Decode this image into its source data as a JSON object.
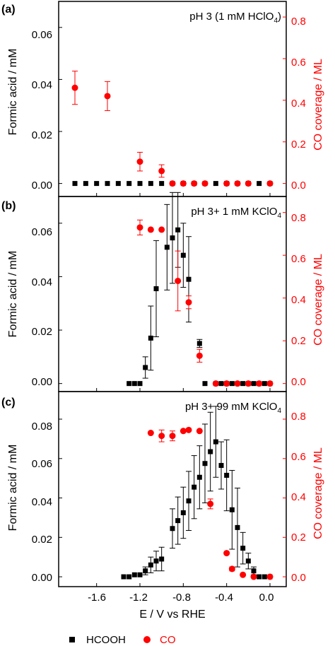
{
  "chart_data": [
    {
      "type": "scatter",
      "panel_label": "(a)",
      "annotation": {
        "prefix": "pH 3 (1 mM HClO",
        "sub": "4",
        "suffix": ")"
      },
      "ylabel_left": "Formic acid / mM",
      "ylabel_right": "CO coverage / ML",
      "ylim_left": [
        -0.005,
        0.07
      ],
      "ylim_right": [
        -0.0625,
        0.875
      ],
      "yticks_left": [
        "0.00",
        "0.02",
        "0.04",
        "0.06"
      ],
      "yticks_right": [
        "0.0",
        "0.2",
        "0.4",
        "0.6",
        "0.8"
      ],
      "xlim": [
        -1.95,
        0.15
      ],
      "series": [
        {
          "name": "HCOOH",
          "axis": "left",
          "points": [
            {
              "x": -1.8,
              "y": 0.0
            },
            {
              "x": -1.7,
              "y": 0.0
            },
            {
              "x": -1.6,
              "y": 0.0
            },
            {
              "x": -1.5,
              "y": 0.0
            },
            {
              "x": -1.4,
              "y": 0.0
            },
            {
              "x": -1.3,
              "y": 0.0
            },
            {
              "x": -1.2,
              "y": 0.0
            },
            {
              "x": -1.1,
              "y": 0.0
            },
            {
              "x": -1.0,
              "y": 0.0
            },
            {
              "x": -0.9,
              "y": 0.0
            },
            {
              "x": -0.8,
              "y": 0.0
            },
            {
              "x": -0.7,
              "y": 0.0
            },
            {
              "x": -0.6,
              "y": 0.0
            },
            {
              "x": -0.5,
              "y": 0.0
            },
            {
              "x": -0.4,
              "y": 0.0
            },
            {
              "x": -0.3,
              "y": 0.0
            },
            {
              "x": -0.2,
              "y": 0.0
            },
            {
              "x": -0.1,
              "y": 0.0
            },
            {
              "x": 0.0,
              "y": 0.0
            }
          ]
        },
        {
          "name": "CO",
          "axis": "right",
          "points": [
            {
              "x": -1.8,
              "y": 0.46,
              "err": 0.08
            },
            {
              "x": -1.5,
              "y": 0.42,
              "err": 0.07
            },
            {
              "x": -1.2,
              "y": 0.105,
              "err": 0.045
            },
            {
              "x": -1.0,
              "y": 0.06,
              "err": 0.03
            },
            {
              "x": -0.9,
              "y": 0.0
            },
            {
              "x": -0.8,
              "y": 0.0
            },
            {
              "x": -0.7,
              "y": 0.0
            },
            {
              "x": -0.6,
              "y": 0.0
            },
            {
              "x": -0.4,
              "y": 0.0
            },
            {
              "x": -0.3,
              "y": 0.0
            },
            {
              "x": -0.2,
              "y": 0.0
            },
            {
              "x": 0.0,
              "y": 0.0
            }
          ]
        }
      ]
    },
    {
      "type": "scatter",
      "panel_label": "(b)",
      "annotation": {
        "prefix": "pH 3+ 1 mM KClO",
        "sub": "4",
        "suffix": ""
      },
      "ylabel_left": "Formic acid / mM",
      "ylabel_right": "CO coverage / ML",
      "ylim_left": [
        -0.003,
        0.07
      ],
      "ylim_right": [
        -0.0375,
        0.875
      ],
      "yticks_left": [
        "0.00",
        "0.02",
        "0.04",
        "0.06"
      ],
      "yticks_right": [
        "0.0",
        "0.2",
        "0.4",
        "0.6",
        "0.8"
      ],
      "xlim": [
        -1.95,
        0.15
      ],
      "series": [
        {
          "name": "HCOOH",
          "axis": "left",
          "points": [
            {
              "x": -1.3,
              "y": 0.0
            },
            {
              "x": -1.25,
              "y": 0.0
            },
            {
              "x": -1.2,
              "y": 0.0
            },
            {
              "x": -1.15,
              "y": 0.006,
              "err": 0.004
            },
            {
              "x": -1.1,
              "y": 0.017,
              "err": 0.012
            },
            {
              "x": -1.05,
              "y": 0.0355,
              "err": 0.018
            },
            {
              "x": -0.95,
              "y": 0.051,
              "err": 0.016
            },
            {
              "x": -0.9,
              "y": 0.0545,
              "err": 0.017
            },
            {
              "x": -0.85,
              "y": 0.0575,
              "err": 0.014
            },
            {
              "x": -0.8,
              "y": 0.048,
              "err": 0.012
            },
            {
              "x": -0.75,
              "y": 0.039,
              "err": 0.016
            },
            {
              "x": -0.65,
              "y": 0.015,
              "err": 0.0015
            },
            {
              "x": -0.6,
              "y": 0.0
            },
            {
              "x": -0.5,
              "y": 0.0
            },
            {
              "x": -0.45,
              "y": 0.0
            },
            {
              "x": -0.4,
              "y": 0.0
            },
            {
              "x": -0.35,
              "y": 0.0
            },
            {
              "x": -0.3,
              "y": 0.0
            },
            {
              "x": -0.25,
              "y": 0.0
            },
            {
              "x": -0.2,
              "y": 0.0
            },
            {
              "x": -0.15,
              "y": 0.0
            },
            {
              "x": -0.1,
              "y": 0.0
            },
            {
              "x": -0.05,
              "y": 0.0
            },
            {
              "x": 0.0,
              "y": 0.0
            }
          ]
        },
        {
          "name": "CO",
          "axis": "right",
          "points": [
            {
              "x": -1.2,
              "y": 0.73,
              "err": 0.035
            },
            {
              "x": -1.1,
              "y": 0.72
            },
            {
              "x": -1.0,
              "y": 0.72
            },
            {
              "x": -0.85,
              "y": 0.48,
              "err": 0.14
            },
            {
              "x": -0.75,
              "y": 0.38,
              "err": 0.03
            },
            {
              "x": -0.65,
              "y": 0.13,
              "err": 0.03
            },
            {
              "x": -0.5,
              "y": 0.0
            },
            {
              "x": -0.4,
              "y": 0.0
            },
            {
              "x": -0.3,
              "y": 0.0
            },
            {
              "x": -0.2,
              "y": 0.0
            },
            {
              "x": -0.1,
              "y": 0.0
            },
            {
              "x": 0.0,
              "y": 0.0
            }
          ]
        }
      ]
    },
    {
      "type": "scatter",
      "panel_label": "(c)",
      "annotation": {
        "prefix": "pH 3+ 99 mM KClO",
        "sub": "4",
        "suffix": ""
      },
      "ylabel_left": "Formic acid / mM",
      "ylabel_right": "CO coverage / ML",
      "xlabel": "E / V vs RHE",
      "ylim_left": [
        -0.005,
        0.094
      ],
      "ylim_right": [
        -0.05,
        0.94
      ],
      "yticks_left": [
        "0.00",
        "0.02",
        "0.04",
        "0.06",
        "0.08"
      ],
      "yticks_right": [
        "0.0",
        "0.2",
        "0.4",
        "0.6",
        "0.8"
      ],
      "xticks": [
        "-1.6",
        "-1.2",
        "-0.8",
        "-0.4",
        "0.0"
      ],
      "xlim": [
        -1.95,
        0.15
      ],
      "series": [
        {
          "name": "HCOOH",
          "axis": "left",
          "points": [
            {
              "x": -1.35,
              "y": 0.0
            },
            {
              "x": -1.3,
              "y": 0.0
            },
            {
              "x": -1.25,
              "y": 0.001
            },
            {
              "x": -1.2,
              "y": 0.001
            },
            {
              "x": -1.15,
              "y": 0.003,
              "err": 0.002
            },
            {
              "x": -1.1,
              "y": 0.006,
              "err": 0.004
            },
            {
              "x": -1.05,
              "y": 0.008,
              "err": 0.005
            },
            {
              "x": -1.0,
              "y": 0.009,
              "err": 0.006
            },
            {
              "x": -0.9,
              "y": 0.0245,
              "err": 0.01
            },
            {
              "x": -0.85,
              "y": 0.0285,
              "err": 0.012
            },
            {
              "x": -0.8,
              "y": 0.0325,
              "err": 0.013
            },
            {
              "x": -0.75,
              "y": 0.0385,
              "err": 0.015
            },
            {
              "x": -0.7,
              "y": 0.0455,
              "err": 0.016
            },
            {
              "x": -0.65,
              "y": 0.0505,
              "err": 0.016
            },
            {
              "x": -0.6,
              "y": 0.0575,
              "err": 0.02
            },
            {
              "x": -0.55,
              "y": 0.0635,
              "err": 0.02
            },
            {
              "x": -0.5,
              "y": 0.0685,
              "err": 0.018
            },
            {
              "x": -0.45,
              "y": 0.0565,
              "err": 0.012
            },
            {
              "x": -0.4,
              "y": 0.0515,
              "err": 0.018
            },
            {
              "x": -0.35,
              "y": 0.034,
              "err": 0.02
            },
            {
              "x": -0.3,
              "y": 0.025,
              "err": 0.02
            },
            {
              "x": -0.25,
              "y": 0.0145,
              "err": 0.008
            },
            {
              "x": -0.2,
              "y": 0.008,
              "err": 0.004
            },
            {
              "x": -0.15,
              "y": 0.003,
              "err": 0.002
            },
            {
              "x": -0.1,
              "y": 0.0
            },
            {
              "x": -0.05,
              "y": 0.0
            },
            {
              "x": 0.0,
              "y": 0.0
            }
          ]
        },
        {
          "name": "CO",
          "axis": "right",
          "points": [
            {
              "x": -1.1,
              "y": 0.73
            },
            {
              "x": -1.0,
              "y": 0.715,
              "err": 0.03
            },
            {
              "x": -0.9,
              "y": 0.715,
              "err": 0.025
            },
            {
              "x": -0.8,
              "y": 0.74
            },
            {
              "x": -0.75,
              "y": 0.745
            },
            {
              "x": -0.65,
              "y": 0.74
            },
            {
              "x": -0.55,
              "y": 0.37,
              "err": 0.025
            },
            {
              "x": -0.4,
              "y": 0.12
            },
            {
              "x": -0.35,
              "y": 0.04,
              "err": 0.01
            },
            {
              "x": -0.25,
              "y": 0.01
            },
            {
              "x": -0.15,
              "y": 0.0
            },
            {
              "x": 0.0,
              "y": 0.0
            }
          ]
        }
      ]
    }
  ],
  "legend": [
    {
      "label": "HCOOH",
      "marker": "square",
      "color": "#000000"
    },
    {
      "label": "CO",
      "marker": "circle",
      "color": "#ff0000"
    }
  ],
  "colors": {
    "hcooh": "#000000",
    "co": "#ff0000"
  }
}
